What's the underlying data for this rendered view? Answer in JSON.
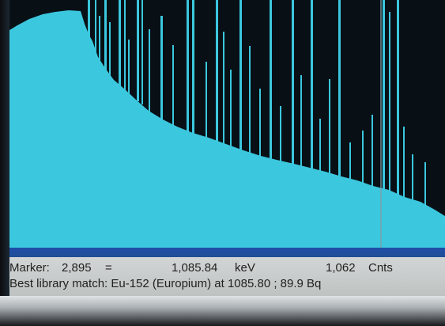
{
  "status": {
    "marker_label": "Marker:",
    "marker_value": "2,895",
    "equals": "=",
    "energy_value": "1,085.84",
    "energy_unit": "keV",
    "counts_value": "1,062",
    "counts_unit": "Cnts",
    "library_match": "Best library match: Eu-152 (Europium) at 1085.80  ;  89.9 Bq"
  },
  "colors": {
    "spectrum": "#3bc7de",
    "background": "#081016",
    "panel": "#c8cccb",
    "window_bar": "#214e91"
  },
  "icons": {
    "marker_cursor": "vertical-marker-line"
  }
}
